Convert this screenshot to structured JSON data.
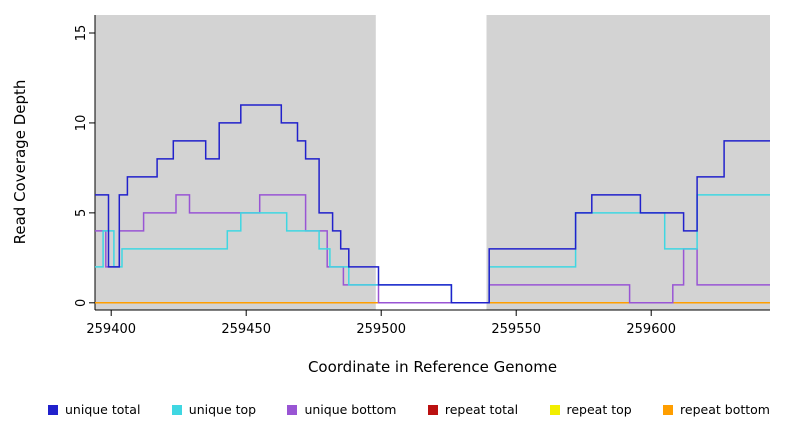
{
  "chart_data": {
    "type": "line",
    "step": true,
    "title": "",
    "xlabel": "Coordinate in Reference Genome",
    "ylabel": "Read Coverage Depth",
    "xlim": [
      259394,
      259644
    ],
    "ylim": [
      0,
      16
    ],
    "x_ticks": [
      259400,
      259450,
      259500,
      259550,
      259600
    ],
    "y_ticks": [
      0,
      5,
      10,
      15
    ],
    "grid": false,
    "legend_position": "bottom",
    "panel_bg": "#d3d3d3",
    "axis_color": "#000000",
    "gap_region": {
      "x0": 259498,
      "x1": 259539,
      "color": "#ffffff"
    },
    "draw_order": [
      3,
      4,
      5,
      2,
      1,
      0
    ],
    "series": [
      {
        "name": "unique total",
        "color": "#2121cc",
        "points": [
          [
            259394,
            6
          ],
          [
            259399,
            2
          ],
          [
            259403,
            6
          ],
          [
            259406,
            7
          ],
          [
            259417,
            8
          ],
          [
            259423,
            9
          ],
          [
            259435,
            8
          ],
          [
            259440,
            10
          ],
          [
            259448,
            11
          ],
          [
            259463,
            10
          ],
          [
            259469,
            9
          ],
          [
            259472,
            8
          ],
          [
            259477,
            5
          ],
          [
            259482,
            4
          ],
          [
            259485,
            3
          ],
          [
            259488,
            2
          ],
          [
            259499,
            1
          ],
          [
            259526,
            0
          ],
          [
            259540,
            3
          ],
          [
            259572,
            5
          ],
          [
            259578,
            6
          ],
          [
            259596,
            5
          ],
          [
            259612,
            4
          ],
          [
            259617,
            7
          ],
          [
            259627,
            9
          ]
        ]
      },
      {
        "name": "unique top",
        "color": "#3fd7e2",
        "points": [
          [
            259394,
            2
          ],
          [
            259397,
            4
          ],
          [
            259401,
            2
          ],
          [
            259404,
            3
          ],
          [
            259443,
            4
          ],
          [
            259448,
            5
          ],
          [
            259465,
            4
          ],
          [
            259477,
            3
          ],
          [
            259481,
            2
          ],
          [
            259488,
            1
          ],
          [
            259526,
            0
          ],
          [
            259540,
            2
          ],
          [
            259572,
            5
          ],
          [
            259605,
            3
          ],
          [
            259617,
            6
          ]
        ]
      },
      {
        "name": "unique bottom",
        "color": "#9955d4",
        "points": [
          [
            259394,
            4
          ],
          [
            259398,
            2
          ],
          [
            259403,
            4
          ],
          [
            259412,
            5
          ],
          [
            259424,
            6
          ],
          [
            259429,
            5
          ],
          [
            259455,
            6
          ],
          [
            259472,
            4
          ],
          [
            259480,
            2
          ],
          [
            259486,
            1
          ],
          [
            259499,
            0
          ],
          [
            259540,
            1
          ],
          [
            259592,
            0
          ],
          [
            259608,
            1
          ],
          [
            259612,
            3
          ],
          [
            259617,
            1
          ]
        ]
      },
      {
        "name": "repeat total",
        "color": "#bb1111",
        "points": [
          [
            259394,
            0
          ]
        ]
      },
      {
        "name": "repeat top",
        "color": "#f2ee00",
        "points": [
          [
            259394,
            0
          ]
        ]
      },
      {
        "name": "repeat bottom",
        "color": "#ff9e00",
        "points": [
          [
            259394,
            0
          ]
        ]
      }
    ]
  }
}
